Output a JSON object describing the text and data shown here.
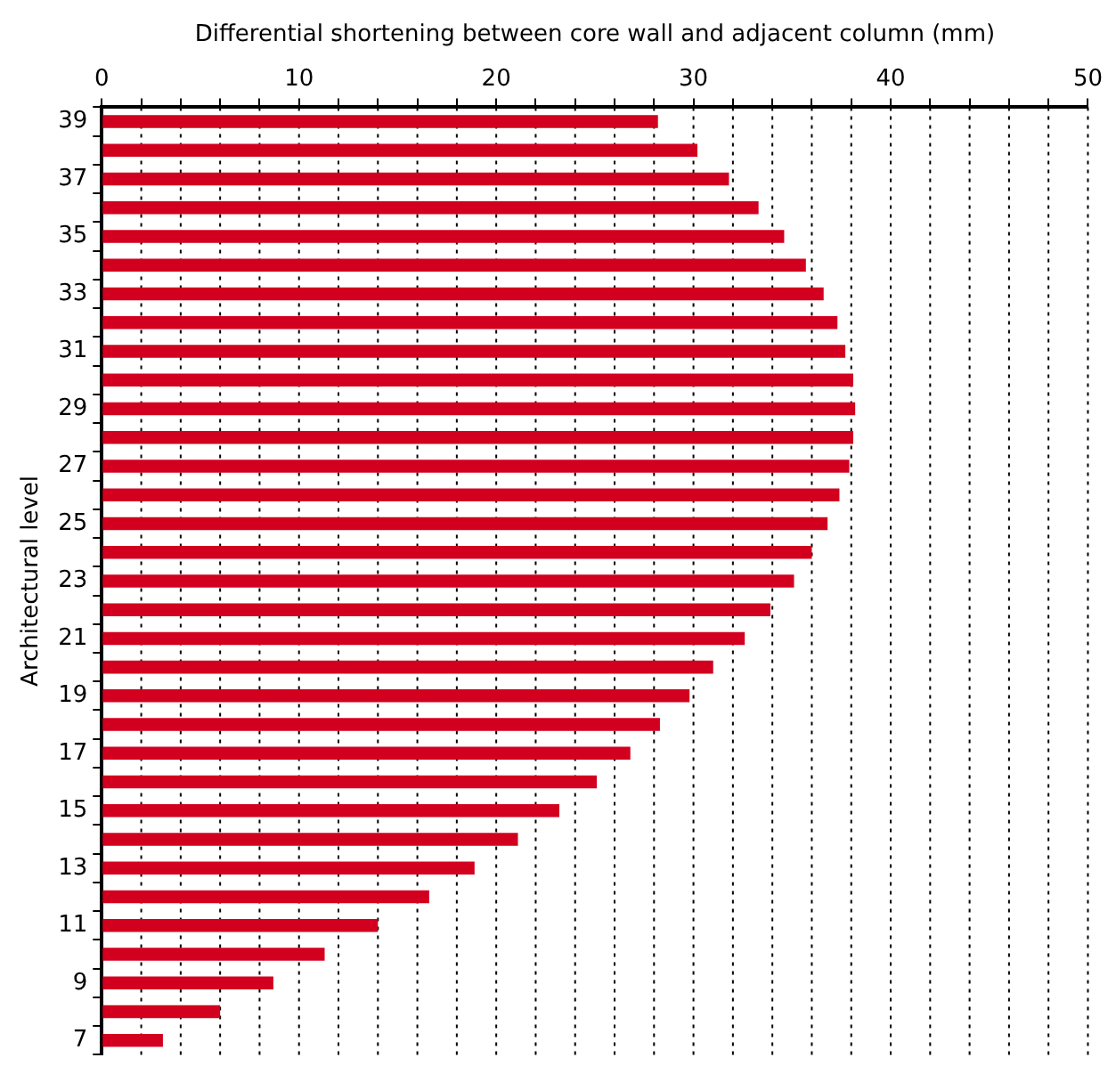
{
  "chart_data": {
    "type": "bar",
    "orientation": "horizontal",
    "xlabel": "Differential shortening between core wall and adjacent column (mm)",
    "ylabel": "Architectural level",
    "categories": [
      "39",
      null,
      "37",
      null,
      "35",
      null,
      "33",
      null,
      "31",
      null,
      "29",
      null,
      "27",
      null,
      "25",
      null,
      "23",
      null,
      "21",
      null,
      "19",
      null,
      "17",
      null,
      "15",
      null,
      "13",
      null,
      "11",
      null,
      "9",
      null,
      "7"
    ],
    "values": [
      28.2,
      30.2,
      31.8,
      33.3,
      34.6,
      35.7,
      36.6,
      37.3,
      37.7,
      38.1,
      38.2,
      38.1,
      37.9,
      37.4,
      36.8,
      36.0,
      35.1,
      33.9,
      32.6,
      31.0,
      29.8,
      28.3,
      26.8,
      25.1,
      23.2,
      21.1,
      18.9,
      16.6,
      14.0,
      11.3,
      8.7,
      6.0,
      3.1
    ],
    "color": "#d2001e",
    "xlim": [
      0,
      50
    ],
    "xticks": [
      0,
      {
        "value": 2,
        "label": null
      },
      {
        "value": 4,
        "label": null
      },
      {
        "value": 6,
        "label": null
      },
      {
        "value": 8,
        "label": null
      },
      10,
      {
        "value": 12,
        "label": null
      },
      {
        "value": 14,
        "label": null
      },
      {
        "value": 16,
        "label": null
      },
      {
        "value": 18,
        "label": null
      },
      20,
      {
        "value": 22,
        "label": null
      },
      {
        "value": 24,
        "label": null
      },
      {
        "value": 26,
        "label": null
      },
      {
        "value": 28,
        "label": null
      },
      30,
      {
        "value": 32,
        "label": null
      },
      {
        "value": 34,
        "label": null
      },
      {
        "value": 36,
        "label": null
      },
      {
        "value": 38,
        "label": null
      },
      40,
      {
        "value": 42,
        "label": null
      },
      {
        "value": 44,
        "label": null
      },
      {
        "value": 46,
        "label": null
      },
      {
        "value": 48,
        "label": null
      },
      50
    ],
    "grid": "x",
    "legend": false
  }
}
